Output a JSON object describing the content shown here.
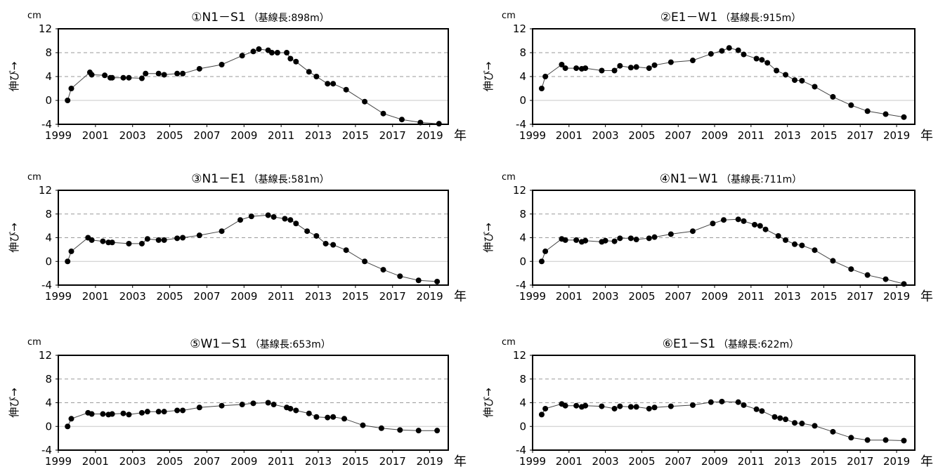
{
  "chart_data": [
    {
      "type": "line",
      "title": "①N1－S1",
      "subtitle": "（基線長:898m）",
      "unit": "cm",
      "ylabel": "伸び→",
      "xlabel": "年",
      "ylim": [
        -4,
        12
      ],
      "yticks": [
        "12",
        "8",
        "4",
        "0",
        "-4"
      ],
      "xlim": [
        1999,
        2020
      ],
      "xticks": [
        "1999",
        "2001",
        "2003",
        "2005",
        "2007",
        "2009",
        "2011",
        "2013",
        "2015",
        "2017",
        "2019"
      ],
      "grid": "horizontal dashed at 4, 8",
      "x": [
        1999.5,
        1999.7,
        2000.7,
        2000.8,
        2001.5,
        2001.8,
        2001.9,
        2002.5,
        2002.8,
        2003.5,
        2003.7,
        2004.4,
        2004.7,
        2005.4,
        2005.7,
        2006.6,
        2007.8,
        2008.9,
        2009.5,
        2009.8,
        2010.3,
        2010.5,
        2010.8,
        2011.3,
        2011.5,
        2011.8,
        2012.5,
        2012.9,
        2013.5,
        2013.8,
        2014.5,
        2015.5,
        2016.5,
        2017.5,
        2018.5,
        2019.5
      ],
      "y": [
        0.0,
        2.0,
        4.7,
        4.3,
        4.2,
        3.8,
        3.8,
        3.8,
        3.8,
        3.7,
        4.5,
        4.5,
        4.3,
        4.5,
        4.5,
        5.3,
        6.0,
        7.5,
        8.2,
        8.6,
        8.4,
        8.0,
        8.0,
        8.0,
        7.0,
        6.5,
        4.8,
        4.0,
        2.8,
        2.8,
        1.8,
        -0.2,
        -2.2,
        -3.2,
        -3.7,
        -3.9
      ],
      "series": [
        {
          "name": "",
          "color": "#000000"
        }
      ]
    },
    {
      "type": "line",
      "title": "②E1－W1",
      "subtitle": "（基線長:915m）",
      "unit": "cm",
      "ylabel": "伸び→",
      "xlabel": "年",
      "ylim": [
        -4,
        12
      ],
      "yticks": [
        "12",
        "8",
        "4",
        "0",
        "-4"
      ],
      "xlim": [
        1999,
        2020
      ],
      "xticks": [
        "1999",
        "2001",
        "2003",
        "2005",
        "2007",
        "2009",
        "2011",
        "2013",
        "2015",
        "2017",
        "2019"
      ],
      "grid": "horizontal dashed at 4, 8",
      "x": [
        1999.5,
        1999.7,
        2000.6,
        2000.8,
        2001.4,
        2001.7,
        2001.9,
        2002.8,
        2003.5,
        2003.8,
        2004.4,
        2004.7,
        2005.4,
        2005.7,
        2006.6,
        2007.8,
        2008.8,
        2009.4,
        2009.8,
        2010.3,
        2010.6,
        2011.3,
        2011.6,
        2011.9,
        2012.4,
        2012.9,
        2013.4,
        2013.8,
        2014.5,
        2015.5,
        2016.5,
        2017.4,
        2018.4,
        2019.4
      ],
      "y": [
        2.0,
        4.0,
        6.0,
        5.4,
        5.4,
        5.3,
        5.4,
        5.0,
        5.0,
        5.8,
        5.5,
        5.6,
        5.4,
        5.9,
        6.4,
        6.7,
        7.8,
        8.3,
        8.8,
        8.4,
        7.7,
        7.0,
        6.8,
        6.3,
        5.0,
        4.3,
        3.4,
        3.3,
        2.3,
        0.6,
        -0.8,
        -1.8,
        -2.3,
        -2.8
      ],
      "series": [
        {
          "name": "",
          "color": "#000000"
        }
      ]
    },
    {
      "type": "line",
      "title": "③N1－E1",
      "subtitle": "（基線長:581m）",
      "unit": "cm",
      "ylabel": "伸び→",
      "xlabel": "年",
      "ylim": [
        -4,
        12
      ],
      "yticks": [
        "12",
        "8",
        "4",
        "0",
        "-4"
      ],
      "xlim": [
        1999,
        2020
      ],
      "xticks": [
        "1999",
        "2001",
        "2003",
        "2005",
        "2007",
        "2009",
        "2011",
        "2013",
        "2015",
        "2017",
        "2019"
      ],
      "grid": "horizontal dashed at 4, 8",
      "x": [
        1999.5,
        1999.7,
        2000.6,
        2000.8,
        2001.4,
        2001.7,
        2001.9,
        2002.8,
        2003.5,
        2003.8,
        2004.4,
        2004.7,
        2005.4,
        2005.7,
        2006.6,
        2007.8,
        2008.8,
        2009.4,
        2010.3,
        2010.6,
        2011.2,
        2011.5,
        2011.8,
        2012.4,
        2012.9,
        2013.4,
        2013.8,
        2014.5,
        2015.5,
        2016.5,
        2017.4,
        2018.4,
        2019.4
      ],
      "y": [
        0.0,
        1.7,
        4.0,
        3.6,
        3.4,
        3.2,
        3.2,
        3.0,
        3.0,
        3.8,
        3.6,
        3.6,
        3.9,
        4.0,
        4.4,
        5.1,
        7.0,
        7.6,
        7.8,
        7.5,
        7.2,
        7.0,
        6.4,
        5.1,
        4.3,
        3.0,
        2.8,
        1.9,
        0.0,
        -1.4,
        -2.5,
        -3.2,
        -3.4
      ],
      "series": [
        {
          "name": "",
          "color": "#000000"
        }
      ]
    },
    {
      "type": "line",
      "title": "④N1－W1",
      "subtitle": "（基線長:711m）",
      "unit": "cm",
      "ylabel": "伸び→",
      "xlabel": "年",
      "ylim": [
        -4,
        12
      ],
      "yticks": [
        "12",
        "8",
        "4",
        "0",
        "-4"
      ],
      "xlim": [
        1999,
        2020
      ],
      "xticks": [
        "1999",
        "2001",
        "2003",
        "2005",
        "2007",
        "2009",
        "2011",
        "2013",
        "2015",
        "2017",
        "2019"
      ],
      "grid": "horizontal dashed at 4, 8",
      "x": [
        1999.5,
        1999.7,
        2000.6,
        2000.8,
        2001.4,
        2001.7,
        2001.9,
        2002.8,
        2003.0,
        2003.5,
        2003.8,
        2004.4,
        2004.7,
        2005.4,
        2005.7,
        2006.6,
        2007.8,
        2008.9,
        2009.5,
        2010.3,
        2010.6,
        2011.2,
        2011.5,
        2011.8,
        2012.5,
        2012.9,
        2013.4,
        2013.8,
        2014.5,
        2015.5,
        2016.5,
        2017.4,
        2018.4,
        2019.4
      ],
      "y": [
        0.0,
        1.7,
        3.8,
        3.6,
        3.6,
        3.3,
        3.5,
        3.3,
        3.5,
        3.4,
        3.9,
        3.9,
        3.7,
        3.9,
        4.1,
        4.6,
        5.1,
        6.4,
        7.0,
        7.1,
        6.8,
        6.2,
        6.0,
        5.4,
        4.3,
        3.6,
        2.9,
        2.7,
        1.9,
        0.1,
        -1.3,
        -2.3,
        -3.0,
        -3.8
      ],
      "series": [
        {
          "name": "",
          "color": "#000000"
        }
      ]
    },
    {
      "type": "line",
      "title": "⑤W1－S1",
      "subtitle": "（基線長:653m）",
      "unit": "cm",
      "ylabel": "伸び→",
      "xlabel": "年",
      "ylim": [
        -4,
        12
      ],
      "yticks": [
        "12",
        "8",
        "4",
        "0",
        "-4"
      ],
      "xlim": [
        1999,
        2020
      ],
      "xticks": [
        "1999",
        "2001",
        "2003",
        "2005",
        "2007",
        "2009",
        "2011",
        "2013",
        "2015",
        "2017",
        "2019"
      ],
      "grid": "horizontal dashed at 4, 8",
      "x": [
        1999.5,
        1999.7,
        2000.6,
        2000.8,
        2001.4,
        2001.7,
        2001.9,
        2002.5,
        2002.8,
        2003.5,
        2003.8,
        2004.4,
        2004.7,
        2005.4,
        2005.7,
        2006.6,
        2007.8,
        2008.9,
        2009.5,
        2010.3,
        2010.6,
        2011.3,
        2011.5,
        2011.8,
        2012.5,
        2012.9,
        2013.5,
        2013.8,
        2014.4,
        2015.4,
        2016.4,
        2017.4,
        2018.4,
        2019.4
      ],
      "y": [
        0.0,
        1.3,
        2.3,
        2.1,
        2.1,
        2.0,
        2.1,
        2.2,
        2.0,
        2.3,
        2.5,
        2.5,
        2.5,
        2.7,
        2.7,
        3.2,
        3.5,
        3.7,
        3.9,
        4.0,
        3.7,
        3.2,
        3.0,
        2.7,
        2.2,
        1.6,
        1.5,
        1.6,
        1.3,
        0.2,
        -0.3,
        -0.6,
        -0.7,
        -0.7
      ],
      "series": [
        {
          "name": "",
          "color": "#000000"
        }
      ]
    },
    {
      "type": "line",
      "title": "⑥E1－S1",
      "subtitle": "（基線長:622m）",
      "unit": "cm",
      "ylabel": "伸び→",
      "xlabel": "年",
      "ylim": [
        -4,
        12
      ],
      "yticks": [
        "12",
        "8",
        "4",
        "0",
        "-4"
      ],
      "xlim": [
        1999,
        2020
      ],
      "xticks": [
        "1999",
        "2001",
        "2003",
        "2005",
        "2007",
        "2009",
        "2011",
        "2013",
        "2015",
        "2017",
        "2019"
      ],
      "grid": "horizontal dashed at 4, 8",
      "x": [
        1999.5,
        1999.7,
        2000.6,
        2000.8,
        2001.4,
        2001.7,
        2001.9,
        2002.8,
        2003.5,
        2003.8,
        2004.4,
        2004.7,
        2005.4,
        2005.7,
        2006.6,
        2007.8,
        2008.8,
        2009.4,
        2010.3,
        2010.6,
        2011.3,
        2011.6,
        2012.3,
        2012.6,
        2012.9,
        2013.4,
        2013.8,
        2014.5,
        2015.5,
        2016.5,
        2017.4,
        2018.4,
        2019.4
      ],
      "y": [
        2.0,
        3.0,
        3.8,
        3.5,
        3.5,
        3.3,
        3.5,
        3.4,
        3.0,
        3.4,
        3.3,
        3.3,
        3.0,
        3.2,
        3.4,
        3.6,
        4.1,
        4.2,
        4.1,
        3.6,
        2.9,
        2.6,
        1.6,
        1.4,
        1.2,
        0.6,
        0.5,
        0.1,
        -0.9,
        -1.9,
        -2.3,
        -2.3,
        -2.4
      ],
      "series": [
        {
          "name": "",
          "color": "#000000"
        }
      ]
    }
  ]
}
